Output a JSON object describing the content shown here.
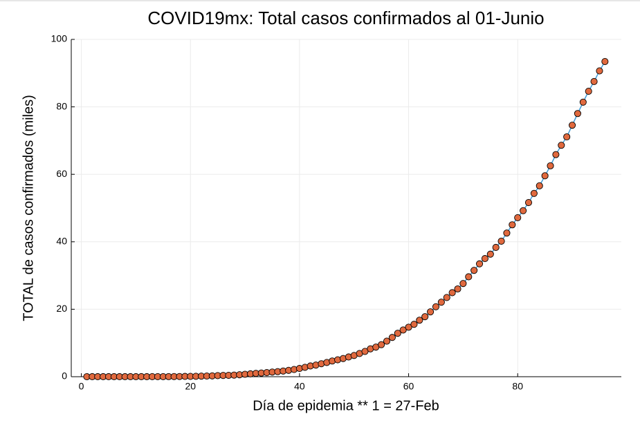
{
  "chart_data": {
    "type": "scatter",
    "title": "COVID19mx: Total casos confirmados al 01-Junio",
    "x_label": "Día de epidemia ** 1 = 27-Feb",
    "y_label": "TOTAL de casos confirmados (miles)",
    "x": [
      1,
      2,
      3,
      4,
      5,
      6,
      7,
      8,
      9,
      10,
      11,
      12,
      13,
      14,
      15,
      16,
      17,
      18,
      19,
      20,
      21,
      22,
      23,
      24,
      25,
      26,
      27,
      28,
      29,
      30,
      31,
      32,
      33,
      34,
      35,
      36,
      37,
      38,
      39,
      40,
      41,
      42,
      43,
      44,
      45,
      46,
      47,
      48,
      49,
      50,
      51,
      52,
      53,
      54,
      55,
      56,
      57,
      58,
      59,
      60,
      61,
      62,
      63,
      64,
      65,
      66,
      67,
      68,
      69,
      70,
      71,
      72,
      73,
      74,
      75,
      76,
      77,
      78,
      79,
      80,
      81,
      82,
      83,
      84,
      85,
      86,
      87,
      88,
      89,
      90,
      91,
      92,
      93,
      94,
      95,
      96
    ],
    "series": [
      {
        "color": "#e0693e",
        "line_color": "#3e9ad6",
        "values": [
          0.002,
          0.004,
          0.005,
          0.005,
          0.005,
          0.005,
          0.005,
          0.006,
          0.006,
          0.007,
          0.007,
          0.007,
          0.008,
          0.012,
          0.016,
          0.026,
          0.041,
          0.053,
          0.082,
          0.093,
          0.118,
          0.164,
          0.203,
          0.251,
          0.316,
          0.367,
          0.405,
          0.475,
          0.585,
          0.717,
          0.848,
          0.993,
          1.094,
          1.215,
          1.378,
          1.51,
          1.688,
          1.89,
          2.143,
          2.439,
          2.785,
          3.181,
          3.441,
          3.844,
          4.219,
          4.661,
          5.014,
          5.399,
          5.847,
          6.297,
          6.875,
          7.497,
          8.261,
          8.772,
          9.501,
          10.544,
          11.633,
          12.872,
          13.842,
          14.677,
          15.529,
          16.752,
          17.799,
          19.224,
          20.739,
          22.088,
          23.471,
          24.905,
          26.025,
          27.634,
          29.616,
          31.522,
          33.46,
          35.022,
          36.327,
          38.324,
          40.186,
          42.595,
          45.032,
          47.144,
          49.219,
          51.633,
          54.346,
          56.594,
          59.567,
          62.527,
          65.856,
          68.62,
          71.105,
          74.56,
          78.023,
          81.4,
          84.627,
          87.512,
          90.664,
          93.435
        ]
      }
    ],
    "xlim": [
      -1.85,
      99
    ],
    "xticks": [
      0,
      20,
      40,
      60,
      80
    ],
    "ylim": [
      0,
      100
    ],
    "yticks": [
      0,
      20,
      40,
      60,
      80,
      100
    ],
    "grid": true
  }
}
